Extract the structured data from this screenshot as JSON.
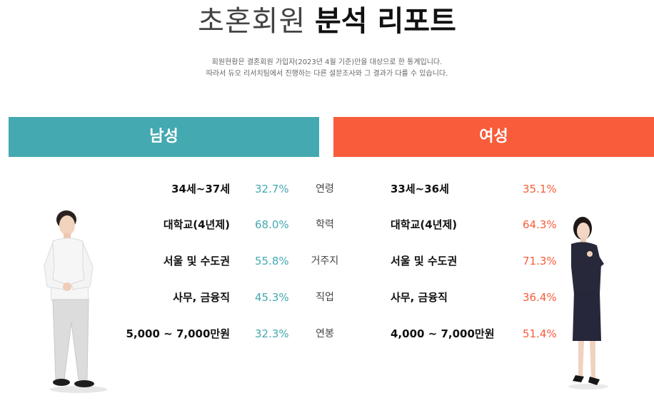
{
  "header": {
    "title_light": "초혼회원",
    "title_bold": "분석 리포트",
    "desc_line1": "회원현황은 결혼회원 가입자(2023년 4월 기준)만을 대상으로 한 통계입니다.",
    "desc_line2": "따라서 듀오 리서치팀에서 진행하는 다른 설문조사와 그 결과가 다를 수 있습니다."
  },
  "banners": {
    "male": "남성",
    "female": "여성"
  },
  "rows": [
    {
      "category": "연령",
      "male_value": "34세~37세",
      "male_pct": "32.7%",
      "female_value": "33세~36세",
      "female_pct": "35.1%"
    },
    {
      "category": "학력",
      "male_value": "대학교(4년제)",
      "male_pct": "68.0%",
      "female_value": "대학교(4년제)",
      "female_pct": "64.3%"
    },
    {
      "category": "거주지",
      "male_value": "서울 및 수도권",
      "male_pct": "55.8%",
      "female_value": "서울 및 수도권",
      "female_pct": "71.3%"
    },
    {
      "category": "직업",
      "male_value": "사무, 금융직",
      "male_pct": "45.3%",
      "female_value": "사무, 금융직",
      "female_pct": "36.4%"
    },
    {
      "category": "연봉",
      "male_value": "5,000 ~ 7,000만원",
      "male_pct": "32.3%",
      "female_value": "4,000 ~ 7,000만원",
      "female_pct": "51.4%"
    }
  ],
  "colors": {
    "male_accent": "#44a9b1",
    "female_accent": "#f85c3a"
  }
}
